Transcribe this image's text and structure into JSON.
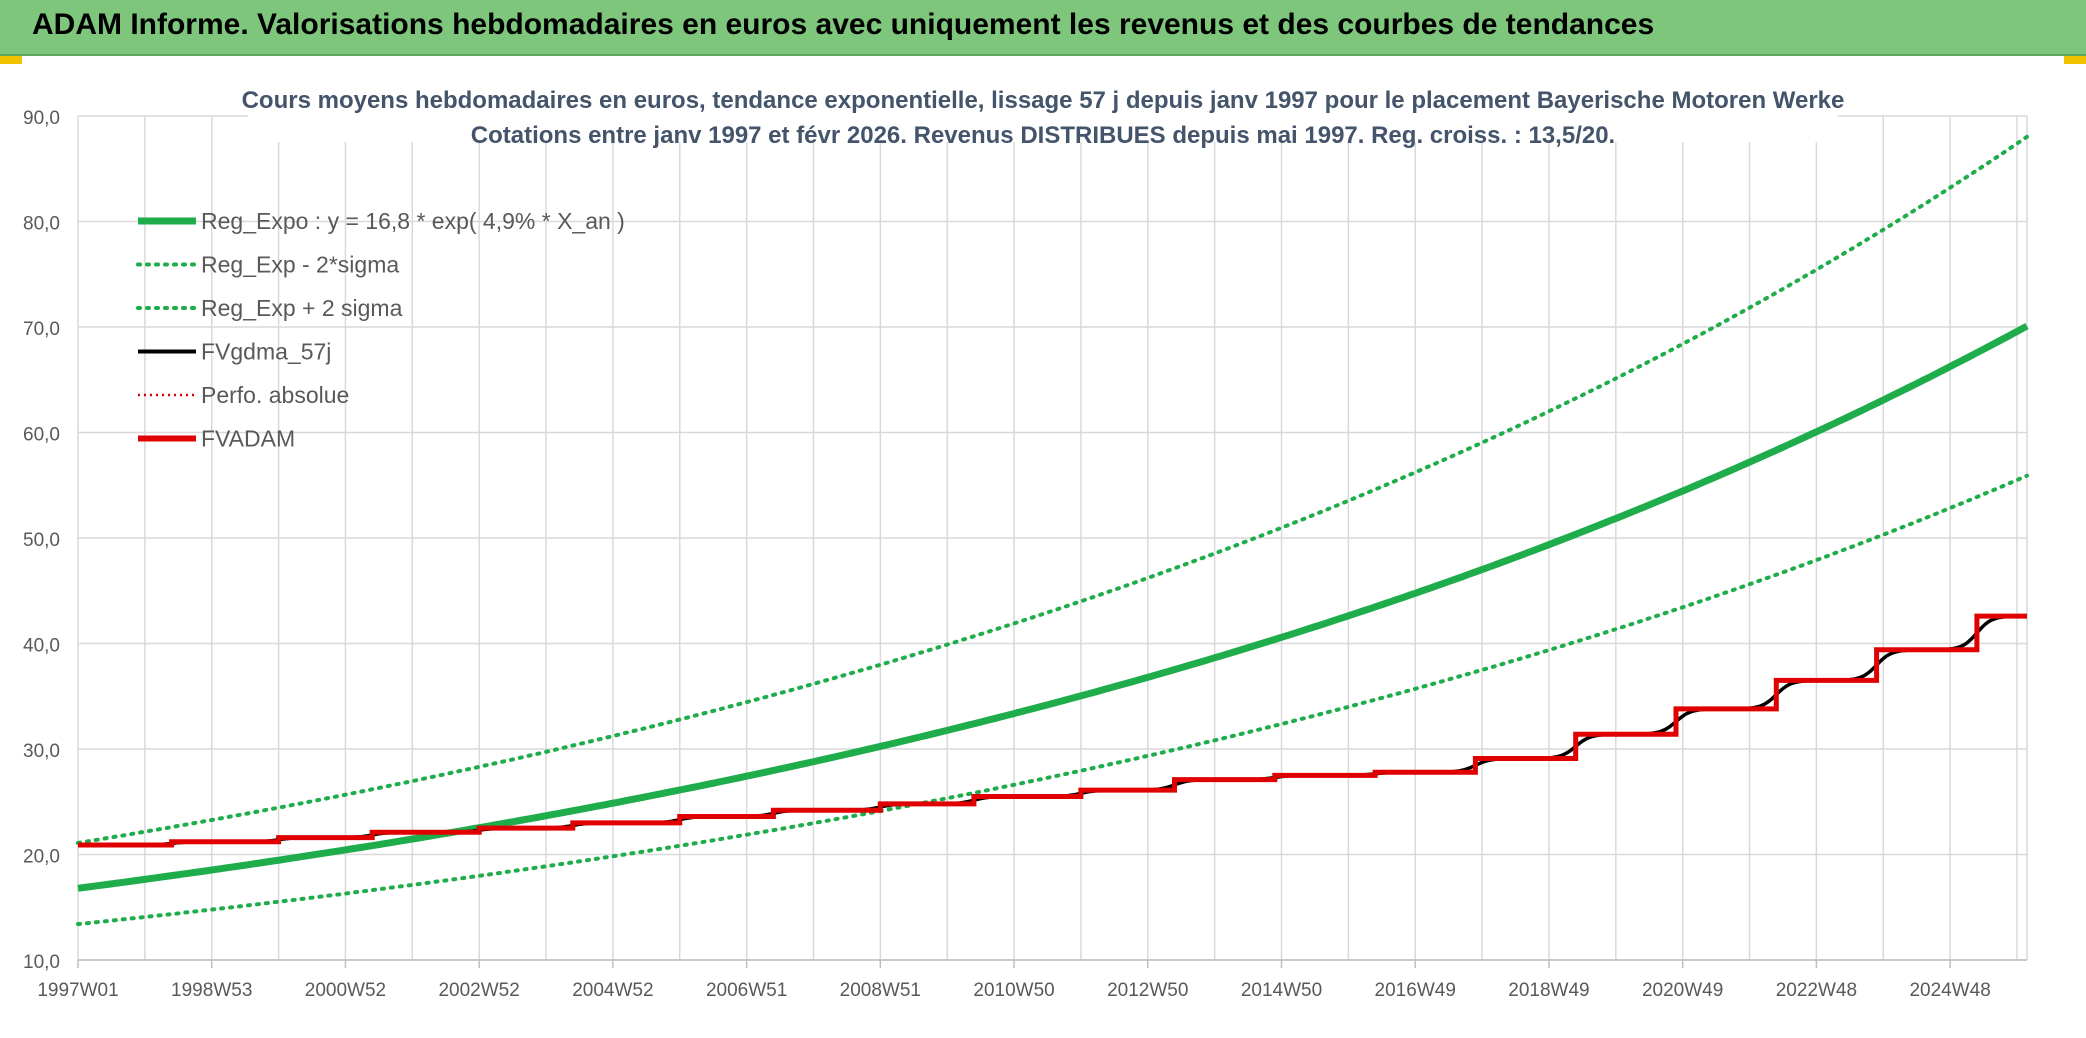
{
  "banner": {
    "title": "ADAM Informe. Valorisations hebdomadaires en euros avec uniquement les revenus et des courbes de tendances"
  },
  "colors": {
    "banner_bg": "#7dc67c",
    "reg_green": "#1fac4b",
    "fvgdma_black": "#000000",
    "fvadam_red": "#e00000",
    "grid": "#d9d9d9"
  },
  "chart_data": {
    "type": "line",
    "title": "Cours moyens hebdomadaires en euros, tendance exponentielle, lissage 57 j depuis janv 1997 pour le placement Bayerische Motoren Werke",
    "subtitle": "Cotations entre janv 1997 et févr 2026. Revenus DISTRIBUES depuis mai 1997. Reg. croiss. : 13,5/20.",
    "xlabel": "",
    "ylabel": "",
    "ylim": [
      10,
      90
    ],
    "y_ticks": [
      "10,0",
      "20,0",
      "30,0",
      "40,0",
      "50,0",
      "60,0",
      "70,0",
      "80,0",
      "90,0"
    ],
    "x_ticks": [
      "1997W01",
      "1998W53",
      "2000W52",
      "2002W52",
      "2004W52",
      "2006W51",
      "2008W51",
      "2010W50",
      "2012W50",
      "2014W50",
      "2016W49",
      "2018W49",
      "2020W49",
      "2022W48",
      "2024W48"
    ],
    "xlim_years": [
      1997.0,
      2026.15
    ],
    "grid": true,
    "legend_position": "top-left",
    "legend": [
      {
        "key": "reg_expo",
        "label": "Reg_Expo : y = 16,8 * exp( 4,9% *  X_an )",
        "style": "solid-thick",
        "color": "#1fac4b"
      },
      {
        "key": "reg_minus",
        "label": "Reg_Exp - 2*sigma",
        "style": "dotted",
        "color": "#1fac4b"
      },
      {
        "key": "reg_plus",
        "label": "Reg_Exp + 2 sigma",
        "style": "dotted",
        "color": "#1fac4b"
      },
      {
        "key": "fvgdma",
        "label": "FVgdma_57j",
        "style": "solid",
        "color": "#000000"
      },
      {
        "key": "perfo",
        "label": "Perfo. absolue",
        "style": "dotted-thin",
        "color": "#e00000"
      },
      {
        "key": "fvadam",
        "label": "FVADAM",
        "style": "solid-thick",
        "color": "#e00000"
      }
    ],
    "series": [
      {
        "name": "Reg_Expo : y = 16,8 * exp( 4,9% *  X_an )",
        "type": "exponential",
        "a": 16.8,
        "rate": 0.049,
        "x_start": 1997.0
      },
      {
        "name": "Reg_Exp - 2*sigma",
        "type": "exponential",
        "a": 13.4,
        "rate": 0.049,
        "x_start": 1997.0
      },
      {
        "name": "Reg_Exp + 2 sigma",
        "type": "exponential",
        "a": 21.1,
        "rate": 0.049,
        "x_start": 1997.0
      },
      {
        "name": "FVADAM",
        "type": "step",
        "steps": [
          {
            "x": 1997.0,
            "y": 20.9
          },
          {
            "x": 1998.4,
            "y": 21.2
          },
          {
            "x": 2000.0,
            "y": 21.6
          },
          {
            "x": 2001.4,
            "y": 22.1
          },
          {
            "x": 2003.0,
            "y": 22.5
          },
          {
            "x": 2004.4,
            "y": 23.0
          },
          {
            "x": 2006.0,
            "y": 23.6
          },
          {
            "x": 2007.4,
            "y": 24.2
          },
          {
            "x": 2009.0,
            "y": 24.8
          },
          {
            "x": 2010.4,
            "y": 25.5
          },
          {
            "x": 2012.0,
            "y": 26.1
          },
          {
            "x": 2013.4,
            "y": 27.1
          },
          {
            "x": 2014.9,
            "y": 27.5
          },
          {
            "x": 2016.4,
            "y": 27.8
          },
          {
            "x": 2017.9,
            "y": 29.1
          },
          {
            "x": 2019.4,
            "y": 31.4
          },
          {
            "x": 2020.9,
            "y": 33.8
          },
          {
            "x": 2022.4,
            "y": 36.5
          },
          {
            "x": 2023.9,
            "y": 39.4
          },
          {
            "x": 2025.4,
            "y": 42.6
          }
        ]
      }
    ]
  }
}
